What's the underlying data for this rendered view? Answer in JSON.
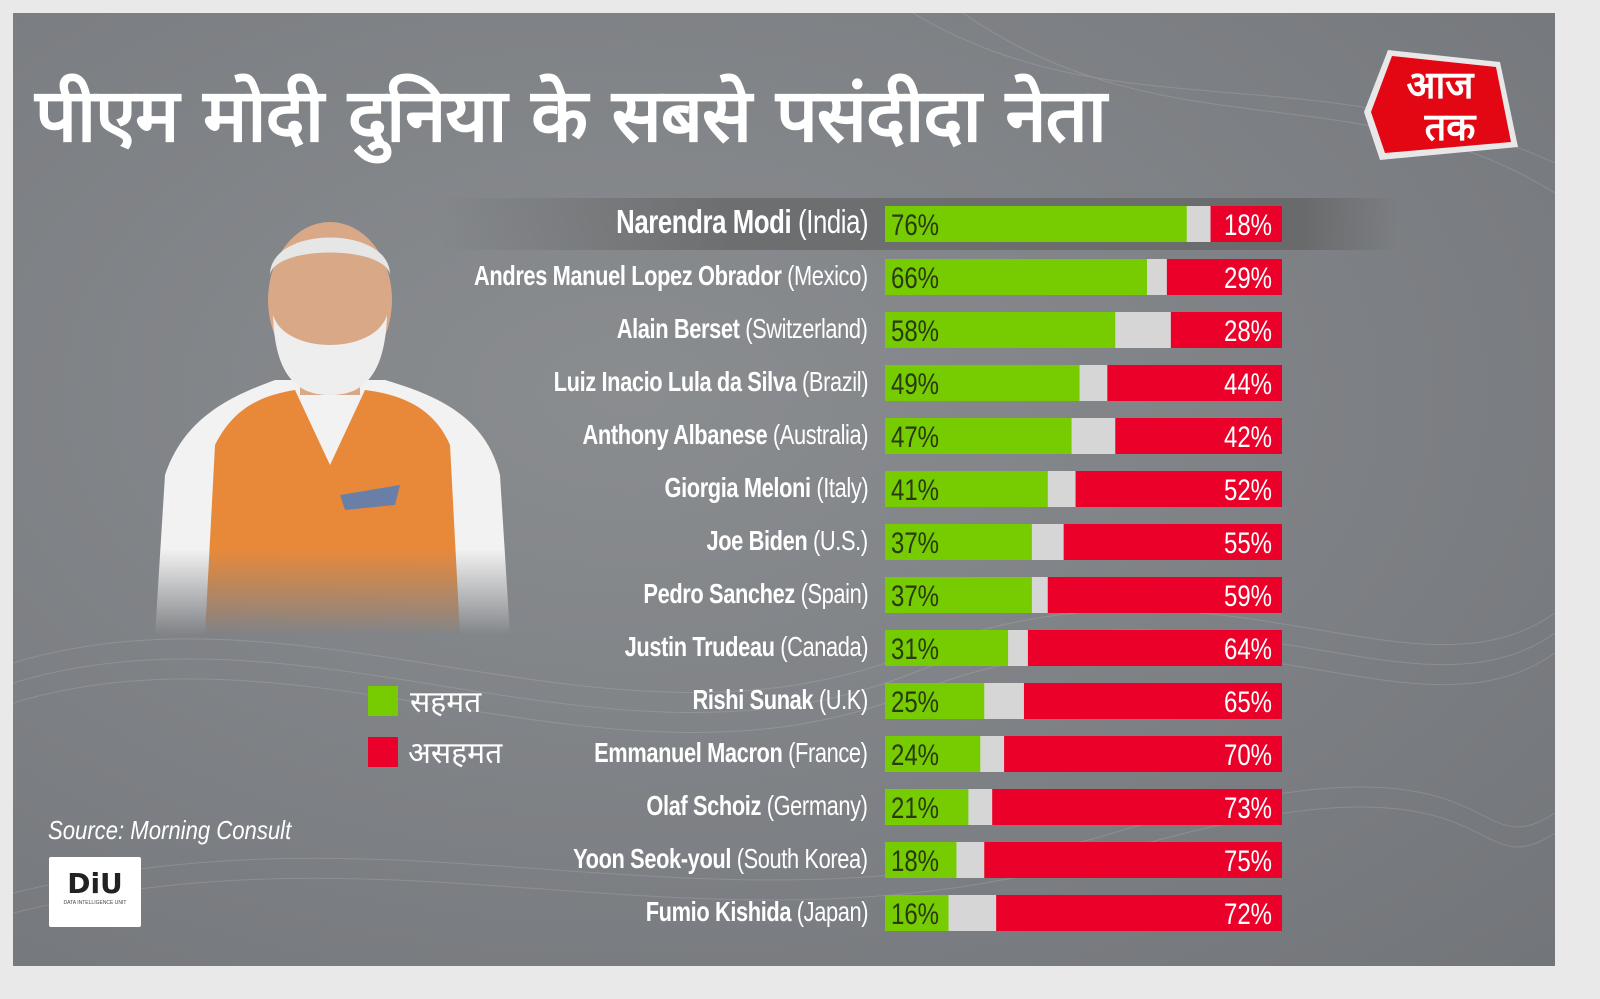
{
  "header": {
    "title": "पीएम मोदी दुनिया के सबसे पसंदीदा नेता",
    "logo_text": [
      "आज",
      "तक"
    ]
  },
  "legend": {
    "agree": "सहमत",
    "disagree": "असहमत"
  },
  "source": "Source: Morning Consult",
  "diu_logo": {
    "text": "DiU",
    "subtitle": "DATA INTELLIGENCE UNIT"
  },
  "colors": {
    "agree": "#76cc00",
    "neutral": "#d6d6d6",
    "disagree": "#ea0029",
    "background": "#7c7f83"
  },
  "chart_data": {
    "type": "bar",
    "stacked": true,
    "orientation": "horizontal",
    "unit": "%",
    "categories": [
      {
        "name": "Narendra Modi",
        "country": "(India)"
      },
      {
        "name": "Andres Manuel Lopez Obrador",
        "country": "(Mexico)"
      },
      {
        "name": "Alain Berset",
        "country": "(Switzerland)"
      },
      {
        "name": "Luiz Inacio Lula da Silva",
        "country": "(Brazil)"
      },
      {
        "name": "Anthony Albanese",
        "country": "(Australia)"
      },
      {
        "name": "Giorgia Meloni",
        "country": "(Italy)"
      },
      {
        "name": "Joe Biden",
        "country": "(U.S.)"
      },
      {
        "name": "Pedro Sanchez",
        "country": "(Spain)"
      },
      {
        "name": "Justin Trudeau",
        "country": "(Canada)"
      },
      {
        "name": "Rishi Sunak",
        "country": "(U.K)"
      },
      {
        "name": "Emmanuel Macron",
        "country": "(France)"
      },
      {
        "name": "Olaf Schoiz",
        "country": "(Germany)"
      },
      {
        "name": "Yoon Seok-youl",
        "country": "(South Korea)"
      },
      {
        "name": "Fumio Kishida",
        "country": "(Japan)"
      }
    ],
    "series": [
      {
        "name": "सहमत",
        "values": [
          76,
          66,
          58,
          49,
          47,
          41,
          37,
          37,
          31,
          25,
          24,
          21,
          18,
          16
        ]
      },
      {
        "name": "असहमत",
        "values": [
          18,
          29,
          28,
          44,
          42,
          52,
          55,
          59,
          64,
          65,
          70,
          73,
          75,
          72
        ]
      }
    ],
    "xlim": [
      0,
      100
    ],
    "legend_position": "left"
  }
}
